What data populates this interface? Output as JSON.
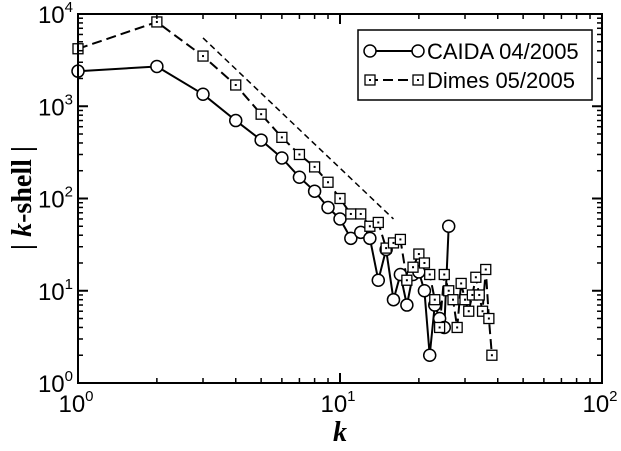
{
  "chart_data": {
    "type": "line",
    "xlabel": "k",
    "ylabel_prefix": "| ",
    "ylabel_k": "k",
    "ylabel_suffix": "-shell |",
    "x_scale": "log",
    "y_scale": "log",
    "xlim": [
      1,
      100
    ],
    "ylim": [
      1,
      10000
    ],
    "x_ticks": [
      {
        "value": 1,
        "base": "10",
        "exp": "0"
      },
      {
        "value": 10,
        "base": "10",
        "exp": "1"
      },
      {
        "value": 100,
        "base": "10",
        "exp": "2"
      }
    ],
    "y_ticks": [
      {
        "value": 1,
        "base": "10",
        "exp": "0"
      },
      {
        "value": 10,
        "base": "10",
        "exp": "1"
      },
      {
        "value": 100,
        "base": "10",
        "exp": "2"
      },
      {
        "value": 1000,
        "base": "10",
        "exp": "3"
      },
      {
        "value": 10000,
        "base": "10",
        "exp": "4"
      }
    ],
    "grid": false,
    "legend_position": "top-right",
    "series": [
      {
        "name": "CAIDA 04/2005",
        "marker": "circle",
        "line": "solid",
        "x": [
          1,
          2,
          3,
          4,
          5,
          6,
          7,
          8,
          9,
          10,
          11,
          12,
          13,
          14,
          15,
          16,
          17,
          18,
          19,
          20,
          21,
          22,
          23,
          24,
          25,
          26
        ],
        "y": [
          2400,
          2700,
          1350,
          700,
          430,
          275,
          170,
          120,
          80,
          60,
          37,
          43,
          37,
          13,
          28,
          8,
          15,
          7,
          15,
          16,
          10,
          2,
          7,
          5,
          4,
          50
        ]
      },
      {
        "name": "Dimes 05/2005",
        "marker": "square",
        "line": "dashed",
        "x": [
          1,
          2,
          3,
          4,
          5,
          6,
          7,
          8,
          9,
          10,
          11,
          12,
          13,
          14,
          15,
          16,
          17,
          18,
          19,
          20,
          21,
          22,
          23,
          24,
          25,
          26,
          27,
          28,
          29,
          30,
          31,
          32,
          33,
          34,
          35,
          36,
          37,
          38
        ],
        "y": [
          4200,
          8200,
          3500,
          1700,
          820,
          460,
          300,
          220,
          150,
          100,
          68,
          68,
          50,
          55,
          29,
          33,
          36,
          13,
          18,
          25,
          20,
          15,
          8,
          4,
          15,
          10,
          8,
          4,
          12,
          8,
          6,
          9,
          14,
          9,
          6,
          17,
          5,
          2
        ]
      }
    ],
    "reference_line": {
      "style": "dashed",
      "x": [
        3,
        16
      ],
      "y": [
        5500,
        60
      ]
    }
  }
}
